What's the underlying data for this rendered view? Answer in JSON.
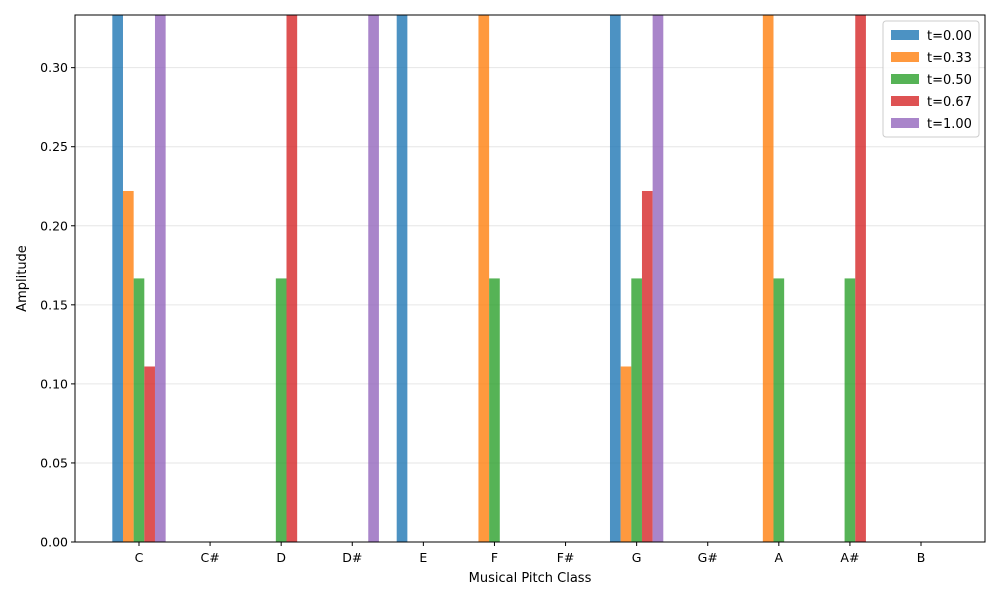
{
  "chart_data": {
    "type": "bar",
    "categories": [
      "C",
      "C#",
      "D",
      "D#",
      "E",
      "F",
      "F#",
      "G",
      "G#",
      "A",
      "A#",
      "B"
    ],
    "series": [
      {
        "name": "t=0.00",
        "color": "#1f77b4",
        "values": [
          0.333,
          0,
          0,
          0,
          0.333,
          0,
          0,
          0.333,
          0,
          0,
          0,
          0
        ]
      },
      {
        "name": "t=0.33",
        "color": "#ff7f0e",
        "values": [
          0.222,
          0,
          0,
          0,
          0,
          0.333,
          0,
          0.111,
          0,
          0.333,
          0,
          0
        ]
      },
      {
        "name": "t=0.50",
        "color": "#2ca02c",
        "values": [
          0.1667,
          0,
          0.1667,
          0,
          0,
          0.1667,
          0,
          0.1667,
          0,
          0.1667,
          0.1667,
          0
        ]
      },
      {
        "name": "t=0.67",
        "color": "#d62728",
        "values": [
          0.111,
          0,
          0.333,
          0,
          0,
          0,
          0,
          0.222,
          0,
          0,
          0.333,
          0
        ]
      },
      {
        "name": "t=1.00",
        "color": "#9467bd",
        "values": [
          0.333,
          0,
          0,
          0.333,
          0,
          0,
          0,
          0.333,
          0,
          0,
          0,
          0
        ]
      }
    ],
    "xlabel": "Musical Pitch Class",
    "ylabel": "Amplitude",
    "ylim": [
      0,
      0.3333
    ],
    "yticks": [
      "0.00",
      "0.05",
      "0.10",
      "0.15",
      "0.20",
      "0.25",
      "0.30"
    ],
    "grid": "y",
    "legend_position": "top-right"
  }
}
